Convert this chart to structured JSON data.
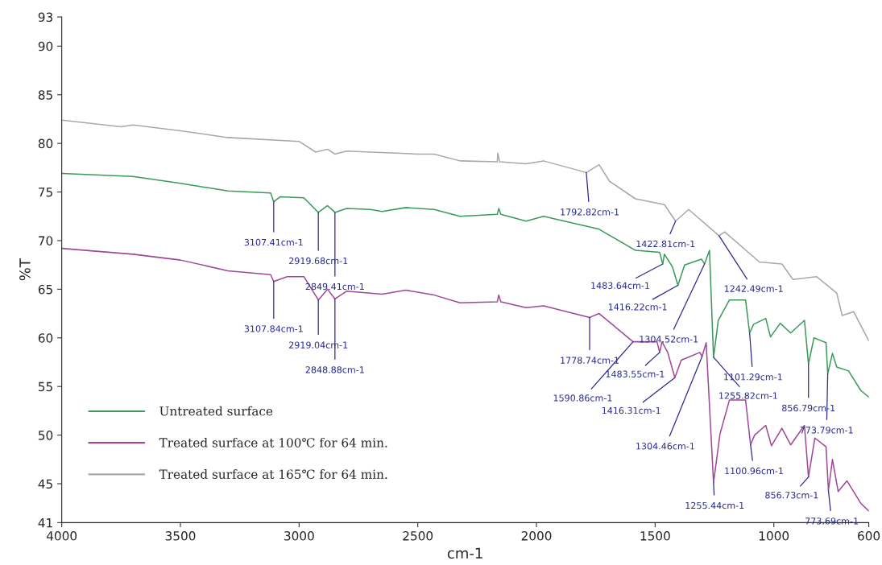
{
  "chart_data": {
    "type": "line",
    "xlabel": "cm-1",
    "ylabel": "%T",
    "xlim": [
      4000,
      600
    ],
    "xticks": [
      4000,
      3500,
      3000,
      2500,
      2000,
      1500,
      1000,
      600
    ],
    "ylim": [
      41,
      93
    ],
    "yticks": [
      41,
      45,
      50,
      55,
      60,
      65,
      70,
      75,
      80,
      85,
      90,
      93
    ],
    "grid": false,
    "legend": "bottom left",
    "marker": "none",
    "line_style": "solid",
    "series": [
      {
        "name": "Untreated surface",
        "color": "#3a9a5a",
        "x": [
          4000,
          3700,
          3500,
          3300,
          3120,
          3107,
          3080,
          2980,
          2919,
          2880,
          2849,
          2800,
          2700,
          2650,
          2550,
          2431,
          2322,
          2165,
          2159,
          2150,
          2044,
          1970,
          1739,
          1583,
          1481,
          1468,
          1461,
          1427,
          1404,
          1376,
          1305,
          1292,
          1271,
          1254,
          1234,
          1187,
          1119,
          1102,
          1085,
          1034,
          1014,
          973,
          929,
          871,
          854,
          831,
          780,
          773,
          753,
          735,
          685,
          634,
          600
        ],
        "values": [
          76.9,
          76.6,
          75.9,
          75.1,
          74.9,
          74.0,
          74.5,
          74.4,
          72.9,
          73.6,
          72.9,
          73.3,
          73.2,
          73.0,
          73.4,
          73.2,
          72.5,
          72.7,
          73.3,
          72.7,
          72.0,
          72.5,
          71.2,
          69.0,
          68.8,
          67.6,
          68.6,
          67.3,
          65.4,
          67.5,
          68.1,
          67.6,
          69.0,
          58.0,
          61.8,
          63.9,
          63.9,
          60.5,
          61.4,
          62.0,
          60.1,
          61.5,
          60.5,
          61.8,
          57.3,
          60.0,
          59.5,
          56.3,
          58.4,
          57.0,
          56.6,
          54.6,
          53.9
        ]
      },
      {
        "name": "Treated surface at 100℃ for 64 min.",
        "color": "#a04898",
        "x": [
          4000,
          3700,
          3500,
          3300,
          3120,
          3107,
          3050,
          2980,
          2919,
          2880,
          2849,
          2800,
          2650,
          2550,
          2431,
          2322,
          2165,
          2159,
          2150,
          2044,
          1970,
          1776,
          1736,
          1593,
          1492,
          1481,
          1471,
          1447,
          1417,
          1390,
          1312,
          1302,
          1285,
          1254,
          1227,
          1187,
          1119,
          1098,
          1081,
          1034,
          1010,
          966,
          929,
          871,
          854,
          827,
          780,
          770,
          753,
          729,
          692,
          634,
          600
        ],
        "values": [
          69.2,
          68.6,
          68.0,
          66.9,
          66.5,
          65.8,
          66.3,
          66.3,
          63.9,
          65.0,
          64.0,
          64.8,
          64.5,
          64.9,
          64.4,
          63.6,
          63.7,
          64.4,
          63.7,
          63.1,
          63.3,
          62.1,
          62.5,
          59.6,
          59.6,
          58.5,
          59.6,
          58.5,
          55.9,
          57.7,
          58.5,
          58.1,
          59.5,
          45.1,
          50.1,
          53.6,
          53.6,
          49.0,
          50.0,
          51.0,
          48.9,
          50.7,
          49.0,
          51.0,
          45.7,
          49.7,
          48.8,
          44.3,
          47.5,
          44.2,
          45.3,
          43.0,
          42.2
        ]
      },
      {
        "name": "Treated surface at 165℃ for 64 min.",
        "color": "#a8a8a8",
        "x": [
          4000,
          3750,
          3700,
          3500,
          3300,
          3000,
          2930,
          2880,
          2850,
          2800,
          2500,
          2431,
          2322,
          2165,
          2163,
          2155,
          2044,
          1970,
          1790,
          1736,
          1692,
          1583,
          1461,
          1414,
          1359,
          1231,
          1207,
          1061,
          966,
          919,
          820,
          735,
          712,
          664,
          600
        ],
        "values": [
          82.4,
          81.7,
          81.9,
          81.3,
          80.6,
          80.2,
          79.1,
          79.4,
          78.9,
          79.2,
          78.9,
          78.9,
          78.2,
          78.1,
          79.0,
          78.1,
          77.9,
          78.2,
          77.0,
          77.8,
          76.1,
          74.3,
          73.7,
          72.0,
          73.2,
          70.5,
          70.9,
          67.8,
          67.6,
          66.0,
          66.3,
          64.6,
          62.3,
          62.7,
          59.7
        ]
      }
    ],
    "annotations": [
      {
        "text": "3107.41cm-1",
        "x": 3107,
        "y": 74.0
      },
      {
        "text": "2919.68cm-1",
        "x": 2919,
        "y": 72.9
      },
      {
        "text": "2849.41cm-1",
        "x": 2849,
        "y": 72.9
      },
      {
        "text": "3107.84cm-1",
        "x": 3107,
        "y": 65.8
      },
      {
        "text": "2919.04cm-1",
        "x": 2919,
        "y": 63.9
      },
      {
        "text": "2848.88cm-1",
        "x": 2849,
        "y": 64.0
      },
      {
        "text": "1792.82cm-1",
        "x": 1790,
        "y": 77.0
      },
      {
        "text": "1422.81cm-1",
        "x": 1414,
        "y": 72.0
      },
      {
        "text": "1242.49cm-1",
        "x": 1231,
        "y": 70.5
      },
      {
        "text": "1483.64cm-1",
        "x": 1468,
        "y": 67.6
      },
      {
        "text": "1416.22cm-1",
        "x": 1404,
        "y": 65.4
      },
      {
        "text": "1304.52cm-1",
        "x": 1292,
        "y": 67.6
      },
      {
        "text": "1255.82cm-1",
        "x": 1254,
        "y": 58.0
      },
      {
        "text": "1101.29cm-1",
        "x": 1102,
        "y": 60.5
      },
      {
        "text": "856.79cm-1",
        "x": 854,
        "y": 57.3
      },
      {
        "text": "773.79cm-1",
        "x": 773,
        "y": 56.3
      },
      {
        "text": "1778.74cm-1",
        "x": 1776,
        "y": 62.1
      },
      {
        "text": "1590.86cm-1",
        "x": 1593,
        "y": 59.6
      },
      {
        "text": "1483.55cm-1",
        "x": 1481,
        "y": 58.5
      },
      {
        "text": "1416.31cm-1",
        "x": 1417,
        "y": 55.9
      },
      {
        "text": "1304.46cm-1",
        "x": 1302,
        "y": 58.1
      },
      {
        "text": "1255.44cm-1",
        "x": 1254,
        "y": 45.1
      },
      {
        "text": "1100.96cm-1",
        "x": 1098,
        "y": 49.0
      },
      {
        "text": "856.73cm-1",
        "x": 854,
        "y": 45.7
      },
      {
        "text": "773.69cm-1",
        "x": 770,
        "y": 44.3
      }
    ]
  }
}
